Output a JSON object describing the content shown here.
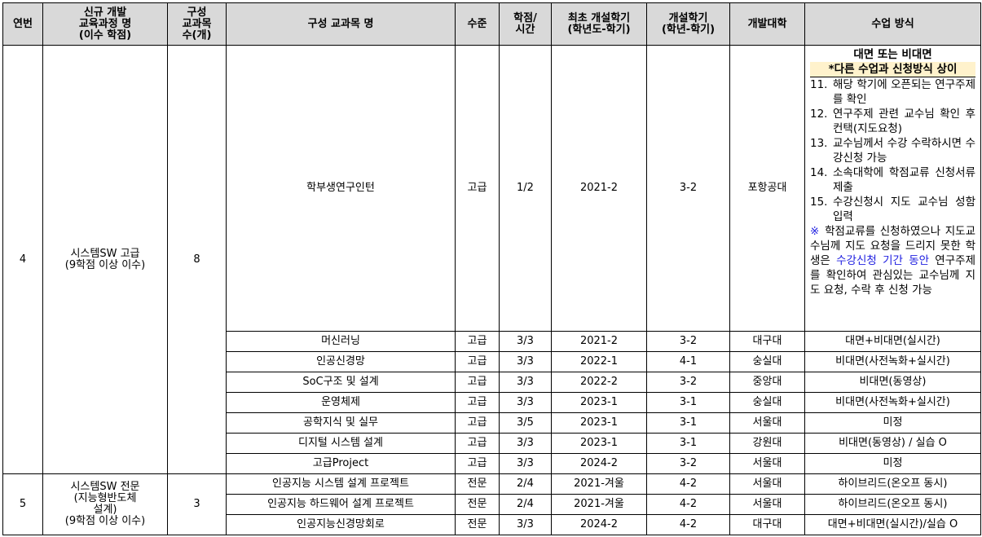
{
  "headers": [
    "연번",
    "신규 개발\n교육과정 명\n(이수 학점)",
    "구성\n교과목\n수(개)",
    "구성 교과목 명",
    "수준",
    "학점/\n시간",
    "최초 개설학기\n(학년도-학기)",
    "개설학기\n(학년-학기)",
    "개발대학",
    "수업 방식"
  ],
  "groups": [
    {
      "no": "4",
      "name": "시스템SW 고급",
      "credits": "(9학점 이상 이수)",
      "count": "8",
      "rows": [
        {
          "course": "학부생연구인턴",
          "level": "고급",
          "credit": "1/2",
          "first": "2021-2",
          "term": "3-2",
          "univ": "포항공대"
        },
        {
          "course": "머신러닝",
          "level": "고급",
          "credit": "3/3",
          "first": "2021-2",
          "term": "3-2",
          "univ": "대구대",
          "method": "대면+비대면(실시간)"
        },
        {
          "course": "인공신경망",
          "level": "고급",
          "credit": "3/3",
          "first": "2022-1",
          "term": "4-1",
          "univ": "숭실대",
          "method": "비대면(사전녹화+실시간)"
        },
        {
          "course": "SoC구조 및 설계",
          "level": "고급",
          "credit": "3/3",
          "first": "2022-2",
          "term": "3-2",
          "univ": "중앙대",
          "method": "비대면(동영상)"
        },
        {
          "course": "운영체제",
          "level": "고급",
          "credit": "3/3",
          "first": "2023-1",
          "term": "3-1",
          "univ": "숭실대",
          "method": "비대면(사전녹화+실시간)"
        },
        {
          "course": "공학지식 및 실무",
          "level": "고급",
          "credit": "3/5",
          "first": "2023-1",
          "term": "3-1",
          "univ": "서울대",
          "method": "미정"
        },
        {
          "course": "디지털 시스템 설계",
          "level": "고급",
          "credit": "3/3",
          "first": "2023-1",
          "term": "3-1",
          "univ": "강원대",
          "method": "비대면(동영상) / 실습 O"
        },
        {
          "course": "고급Project",
          "level": "고급",
          "credit": "3/3",
          "first": "2024-2",
          "term": "3-2",
          "univ": "서울대",
          "method": "미정"
        }
      ]
    },
    {
      "no": "5",
      "name": "시스템SW 전문",
      "name2": "(지능형반도체",
      "name3": "설계)",
      "credits": "(9학점 이상 이수)",
      "count": "3",
      "rows": [
        {
          "course": "인공지능 시스템 설계 프로젝트",
          "level": "전문",
          "credit": "2/4",
          "first": "2021-겨울",
          "term": "4-2",
          "univ": "서울대",
          "method": "하이브리드(온오프 동시)"
        },
        {
          "course": "인공지능 하드웨어 설계 프로젝트",
          "level": "전문",
          "credit": "2/4",
          "first": "2021-겨울",
          "term": "4-2",
          "univ": "서울대",
          "method": "하이브리드(온오프 동시)"
        },
        {
          "course": "인공지능신경망회로",
          "level": "전문",
          "credit": "3/3",
          "first": "2024-2",
          "term": "4-2",
          "univ": "대구대",
          "method": "대면+비대면(실시간)/실습 O"
        }
      ]
    }
  ],
  "intern_method": {
    "title": "대면 또는 비대면",
    "note": "*다른 수업과 신청방식 상이",
    "steps": [
      {
        "n": "11.",
        "t": "해당 학기에 오픈되는 연구주제를 확인"
      },
      {
        "n": "12.",
        "t": "연구주제 관련 교수님 확인 후 컨택(지도요청)"
      },
      {
        "n": "13.",
        "t": "교수님께서 수강 수락하시면 수강신청 가능"
      },
      {
        "n": "14.",
        "t": "소속대학에 학점교류 신청서류 제출"
      },
      {
        "n": "15.",
        "t": "수강신청시 지도 교수님 성함 입력"
      }
    ],
    "warn_mark": "※",
    "warn1": " 학점교류를 신청하였으나 지도교수님께 지도 요청을 드리지 못한 학생은 ",
    "warn_hl": "수강신청 기간 동안",
    "warn2": " 연구주제를 확인하여 관심있는 교수님께 지도 요청, 수락 후 신청 가능"
  }
}
